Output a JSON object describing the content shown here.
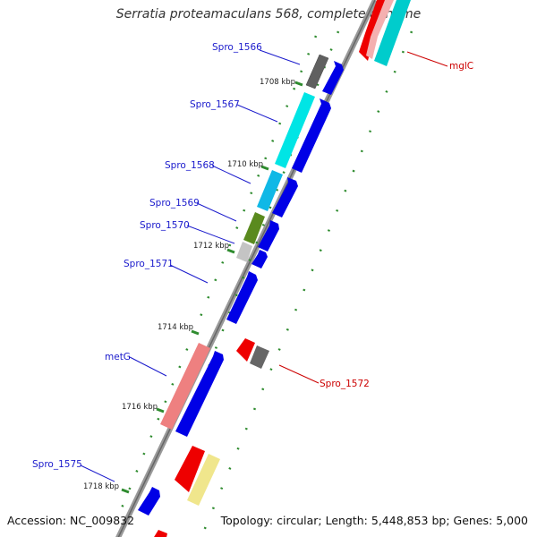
{
  "title": "Serratia proteamaculans 568, complete genome",
  "accession": "Accession: NC_009832",
  "summary": "Topology: circular; Length: 5,448,853 bp; Genes: 5,000",
  "colors": {
    "forward_label": "#1a1acc",
    "reverse_label": "#cc0000"
  },
  "kbp_labels": [
    "1708 kbp",
    "1710 kbp",
    "1712 kbp",
    "1714 kbp",
    "1716 kbp",
    "1718 kbp"
  ],
  "gene_labels": [
    "Spro_1566",
    "Spro_1567",
    "Spro_1568",
    "Spro_1569",
    "Spro_1570",
    "Spro_1571",
    "metG",
    "Spro_1575",
    "mglC",
    "Spro_1572"
  ]
}
